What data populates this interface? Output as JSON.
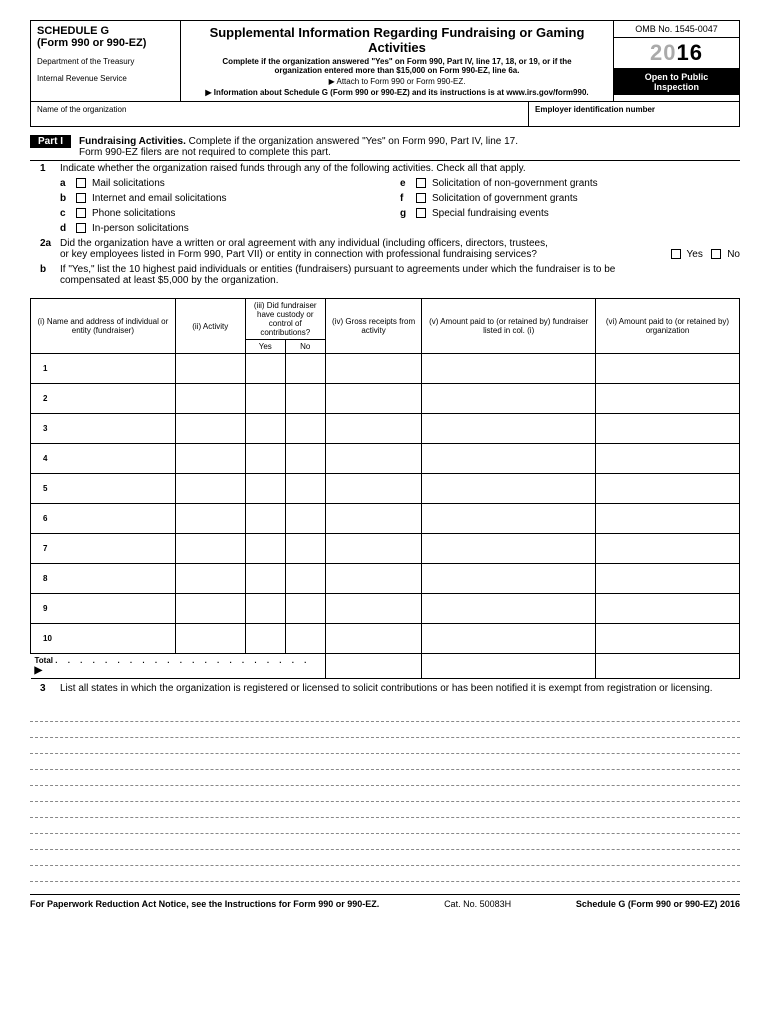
{
  "header": {
    "schedule": "SCHEDULE G",
    "form": "(Form 990 or 990-EZ)",
    "dept1": "Department of the Treasury",
    "dept2": "Internal Revenue Service",
    "title": "Supplemental Information Regarding Fundraising or Gaming Activities",
    "instr1": "Complete if the organization answered \"Yes\" on Form 990, Part IV, line 17, 18, or 19, or if the",
    "instr2": "organization entered more than $15,000 on Form 990-EZ, line 6a.",
    "attach": "▶ Attach to Form 990 or Form 990-EZ.",
    "url": "▶ Information about Schedule G (Form 990 or 990-EZ) and its instructions is at www.irs.gov/form990.",
    "omb": "OMB No. 1545-0047",
    "year20": "20",
    "year16": "16",
    "open1": "Open to Public",
    "open2": "Inspection"
  },
  "nameEin": {
    "nameLabel": "Name of the organization",
    "einLabel": "Employer identification number"
  },
  "part1": {
    "badge": "Part I",
    "title": "Fundraising Activities.",
    "desc": " Complete if the organization answered \"Yes\" on Form 990, Part IV, line 17.",
    "desc2": "Form 990-EZ filers are not required to complete this part."
  },
  "q1": {
    "num": "1",
    "text": "Indicate whether the organization raised funds through any of the following activities. Check all that apply."
  },
  "checks": {
    "a": {
      "letter": "a",
      "label": "Mail solicitations"
    },
    "b": {
      "letter": "b",
      "label": "Internet and email solicitations"
    },
    "c": {
      "letter": "c",
      "label": "Phone solicitations"
    },
    "d": {
      "letter": "d",
      "label": "In-person solicitations"
    },
    "e": {
      "letter": "e",
      "label": "Solicitation of non-government grants"
    },
    "f": {
      "letter": "f",
      "label": "Solicitation of government grants"
    },
    "g": {
      "letter": "g",
      "label": "Special fundraising events"
    }
  },
  "q2a": {
    "num": "2a",
    "line1": "Did the organization have a written or oral agreement with any individual (including officers, directors, trustees,",
    "line2": "or key employees listed in Form 990, Part VII) or entity in connection with professional fundraising services?",
    "yes": "Yes",
    "no": "No"
  },
  "q2b": {
    "num": "b",
    "line1": "If \"Yes,\" list the 10 highest paid individuals or entities (fundraisers) pursuant to agreements under which the fundraiser is to be",
    "line2": "compensated at least $5,000 by the organization."
  },
  "table": {
    "headers": {
      "i": "(i) Name and address of individual or entity (fundraiser)",
      "ii": "(ii) Activity",
      "iii": "(iii) Did fundraiser have custody or control of contributions?",
      "iv": "(iv) Gross receipts from activity",
      "v": "(v) Amount paid to (or retained by) fundraiser listed in col. (i)",
      "vi": "(vi) Amount paid to (or retained by) organization",
      "yes": "Yes",
      "no": "No"
    },
    "rows": [
      "1",
      "2",
      "3",
      "4",
      "5",
      "6",
      "7",
      "8",
      "9",
      "10"
    ],
    "total": "Total"
  },
  "q3": {
    "num": "3",
    "text": "List all states in which the organization is registered or licensed to solicit contributions or has been notified it is exempt from registration or licensing."
  },
  "footer": {
    "left": "For Paperwork Reduction Act Notice, see the Instructions for Form 990 or 990-EZ.",
    "center": "Cat. No. 50083H",
    "right": "Schedule G (Form 990 or 990-EZ) 2016"
  }
}
